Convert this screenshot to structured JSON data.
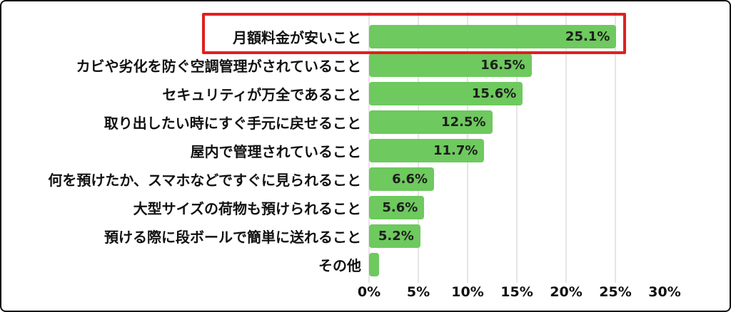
{
  "chart_data": {
    "type": "bar",
    "orientation": "horizontal",
    "title": "",
    "xlabel": "",
    "ylabel": "",
    "categories": [
      "月額料金が安いこと",
      "カビや劣化を防ぐ空調管理がされていること",
      "セキュリティが万全であること",
      "取り出したい時にすぐ手元に戻せること",
      "屋内で管理されていること",
      "何を預けたか、スマホなどですぐに見られること",
      "大型サイズの荷物も預けられること",
      "預ける際に段ボールで簡単に送れること",
      "その他"
    ],
    "values": [
      25.1,
      16.5,
      15.6,
      12.5,
      11.7,
      6.6,
      5.6,
      5.2,
      1.0
    ],
    "value_labels": [
      "25.1%",
      "16.5%",
      "15.6%",
      "12.5%",
      "11.7%",
      "6.6%",
      "5.6%",
      "5.2%",
      ""
    ],
    "xlim": [
      0,
      30
    ],
    "x_ticks": [
      "0%",
      "5%",
      "10%",
      "15%",
      "20%",
      "25%",
      "30%"
    ],
    "x_tick_values": [
      0,
      5,
      10,
      15,
      20,
      25,
      30
    ],
    "gridline_tick_values": [
      0,
      5,
      10,
      15,
      20,
      25
    ],
    "grid": "vertical",
    "legend": "none",
    "highlight": {
      "index": 0,
      "style": "red outline box around top category row and its bar"
    },
    "colors": {
      "bar": "#6ec95e",
      "value_text": "#1d1d1d",
      "label_text": "#111111",
      "gridline": "#e5e5e5",
      "highlight_border": "#e02020",
      "background": "#ffffff",
      "card_border": "#0c0c0c"
    }
  }
}
